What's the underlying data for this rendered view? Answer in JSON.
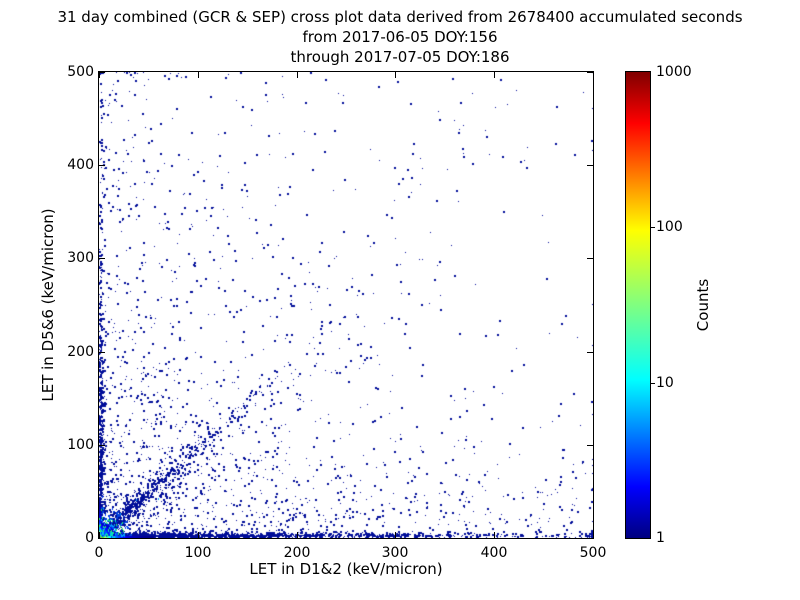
{
  "chart_data": {
    "type": "scatter-heatmap",
    "title": "31 day combined (GCR & SEP) cross plot data derived from 2678400 accumulated seconds",
    "subtitle_from": "from 2017-06-05 DOY:156",
    "subtitle_through": "through 2017-07-05 DOY:186",
    "xlabel": "LET in D1&2 (keV/micron)",
    "ylabel": "LET in D5&6 (keV/micron)",
    "xlim": [
      0,
      500
    ],
    "ylim": [
      0,
      500
    ],
    "xticks": [
      0,
      100,
      200,
      300,
      400,
      500
    ],
    "yticks": [
      0,
      100,
      200,
      300,
      400,
      500
    ],
    "grid": false,
    "background": "#ffffff",
    "point_base_color": "#000d99",
    "colorbar": {
      "label": "Counts",
      "scale": "log",
      "min": 1,
      "max": 1000,
      "ticks": [
        1000,
        100,
        10,
        1
      ],
      "colormap": "jet",
      "gradient_stops": [
        [
          "#000080",
          0.0
        ],
        [
          "#0000ff",
          0.11
        ],
        [
          "#00ffff",
          0.34
        ],
        [
          "#80ff80",
          0.5
        ],
        [
          "#ffff00",
          0.66
        ],
        [
          "#ff0000",
          0.89
        ],
        [
          "#800000",
          1.0
        ]
      ]
    },
    "distribution": {
      "note": "Density structure read from the pixels: hot core (~1000 counts, red/orange/yellow) at the origin fading through green/cyan to blue within ~20 keV/micron; dense blue band along the x-axis out to ~500; dense blue band up the y-axis; a cyan-to-blue diagonal streak y~x out to ~100; diffuse navy single-count speckle concentrated in the lower-left, a loose clump near (240,225), sparse outliers elsewhere.",
      "seed": 20170605,
      "clusters": [
        {
          "name": "bottom-edge-band",
          "n": 1300,
          "x": [
            "exp",
            160
          ],
          "y": [
            "habs",
            2.4
          ]
        },
        {
          "name": "left-edge-band",
          "n": 600,
          "x": [
            "habs",
            2.2
          ],
          "y": [
            "exp",
            140
          ]
        },
        {
          "name": "main-diagonal-streak",
          "n": 600,
          "diag": {
            "mean": 42,
            "slope": 0.97,
            "spread": 3.2
          }
        },
        {
          "name": "diagonal-halo",
          "n": 320,
          "diag": {
            "mean": 55,
            "slope": 0.95,
            "spread": 9
          }
        },
        {
          "name": "bulk-lower-left",
          "n": 850,
          "x": [
            "exp",
            115
          ],
          "y": [
            "exp",
            115
          ]
        },
        {
          "name": "bottom-diffuse",
          "n": 380,
          "x": [
            "uni",
            0,
            500
          ],
          "y": [
            "exp",
            48
          ]
        },
        {
          "name": "left-diffuse",
          "n": 300,
          "x": [
            "exp",
            75
          ],
          "y": [
            "uni",
            0,
            500
          ]
        },
        {
          "name": "mid-clump",
          "n": 70,
          "x": [
            "norm",
            240,
            38
          ],
          "y": [
            "norm",
            225,
            38
          ]
        },
        {
          "name": "upper-mini-clump",
          "n": 12,
          "x": [
            "norm",
            315,
            12
          ],
          "y": [
            "norm",
            390,
            18
          ]
        },
        {
          "name": "sparse-outliers",
          "n": 150,
          "x": [
            "uni",
            0,
            500
          ],
          "y": [
            "uni",
            0,
            500
          ]
        }
      ],
      "core": {
        "radii": [
          17,
          13.5,
          10.5,
          8,
          6,
          4.8,
          3.6,
          2.6,
          1.6,
          1.0
        ],
        "decay": 7,
        "peak": 0.95
      },
      "strips": {
        "bottom": {
          "len": 55,
          "decay": 13
        },
        "left": {
          "len": 38,
          "decay": 10
        }
      }
    }
  }
}
